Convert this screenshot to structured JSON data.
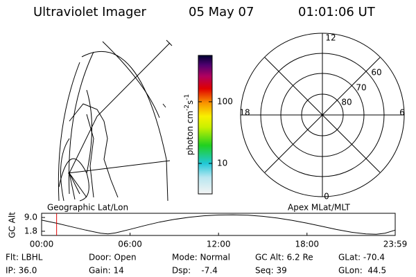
{
  "header": {
    "title": "Ultraviolet Imager",
    "date": "05 May 07",
    "time": "01:01:06 UT"
  },
  "colorbar": {
    "label": "photon cm",
    "exp1": "-2",
    "unit2": "s",
    "exp2": "-1",
    "log": true,
    "range": [
      3.2,
      565
    ],
    "ticks": [
      10,
      100
    ]
  },
  "polar": {
    "labels": {
      "top": "12",
      "bottom": "0",
      "left": "18",
      "right": "6"
    },
    "rings": [
      "60",
      "70",
      "80"
    ]
  },
  "panel_labels": {
    "left": "Geographic Lat/Lon",
    "right": "Apex MLat/MLT"
  },
  "altitude_plot": {
    "ylabel": "GC Alt",
    "ylim": [
      -0.4,
      11.2
    ],
    "yticks": [
      {
        "value": 9.0,
        "label": "9.0"
      },
      1.8
    ],
    "xlim": [
      0,
      23.983
    ],
    "xticks": [
      {
        "value": 0,
        "label": "00:00"
      },
      {
        "value": 6,
        "label": "06:00"
      },
      {
        "value": 12,
        "label": "12:00"
      },
      {
        "value": 18,
        "label": "18:00"
      },
      {
        "value": 23.983,
        "label": "23:59"
      }
    ],
    "current_time": 1.018,
    "x": [
      0,
      1,
      2,
      3,
      4,
      4.5,
      5,
      6,
      7,
      8,
      9,
      10,
      11,
      12,
      13,
      14,
      15,
      16,
      17,
      18,
      19,
      20,
      21,
      22,
      22.7,
      23.3,
      23.983
    ],
    "values": [
      7.6,
      6.0,
      4.2,
      2.4,
      0.8,
      0.4,
      0.9,
      2.8,
      4.8,
      6.6,
      8.0,
      9.1,
      9.9,
      10.3,
      10.4,
      10.2,
      9.6,
      8.7,
      7.5,
      6.0,
      4.4,
      2.7,
      1.3,
      0.4,
      0.2,
      0.8,
      2.4
    ]
  },
  "info": [
    [
      "Flt: LBHL",
      "Door: Open",
      "Mode: Normal",
      "GC Alt: 6.2 Re",
      "GLat: -70.4"
    ],
    [
      "IP: 36.0",
      "Gain: 14",
      "Dsp:    -7.4",
      "Seq: 39",
      "GLon:  44.5"
    ]
  ]
}
